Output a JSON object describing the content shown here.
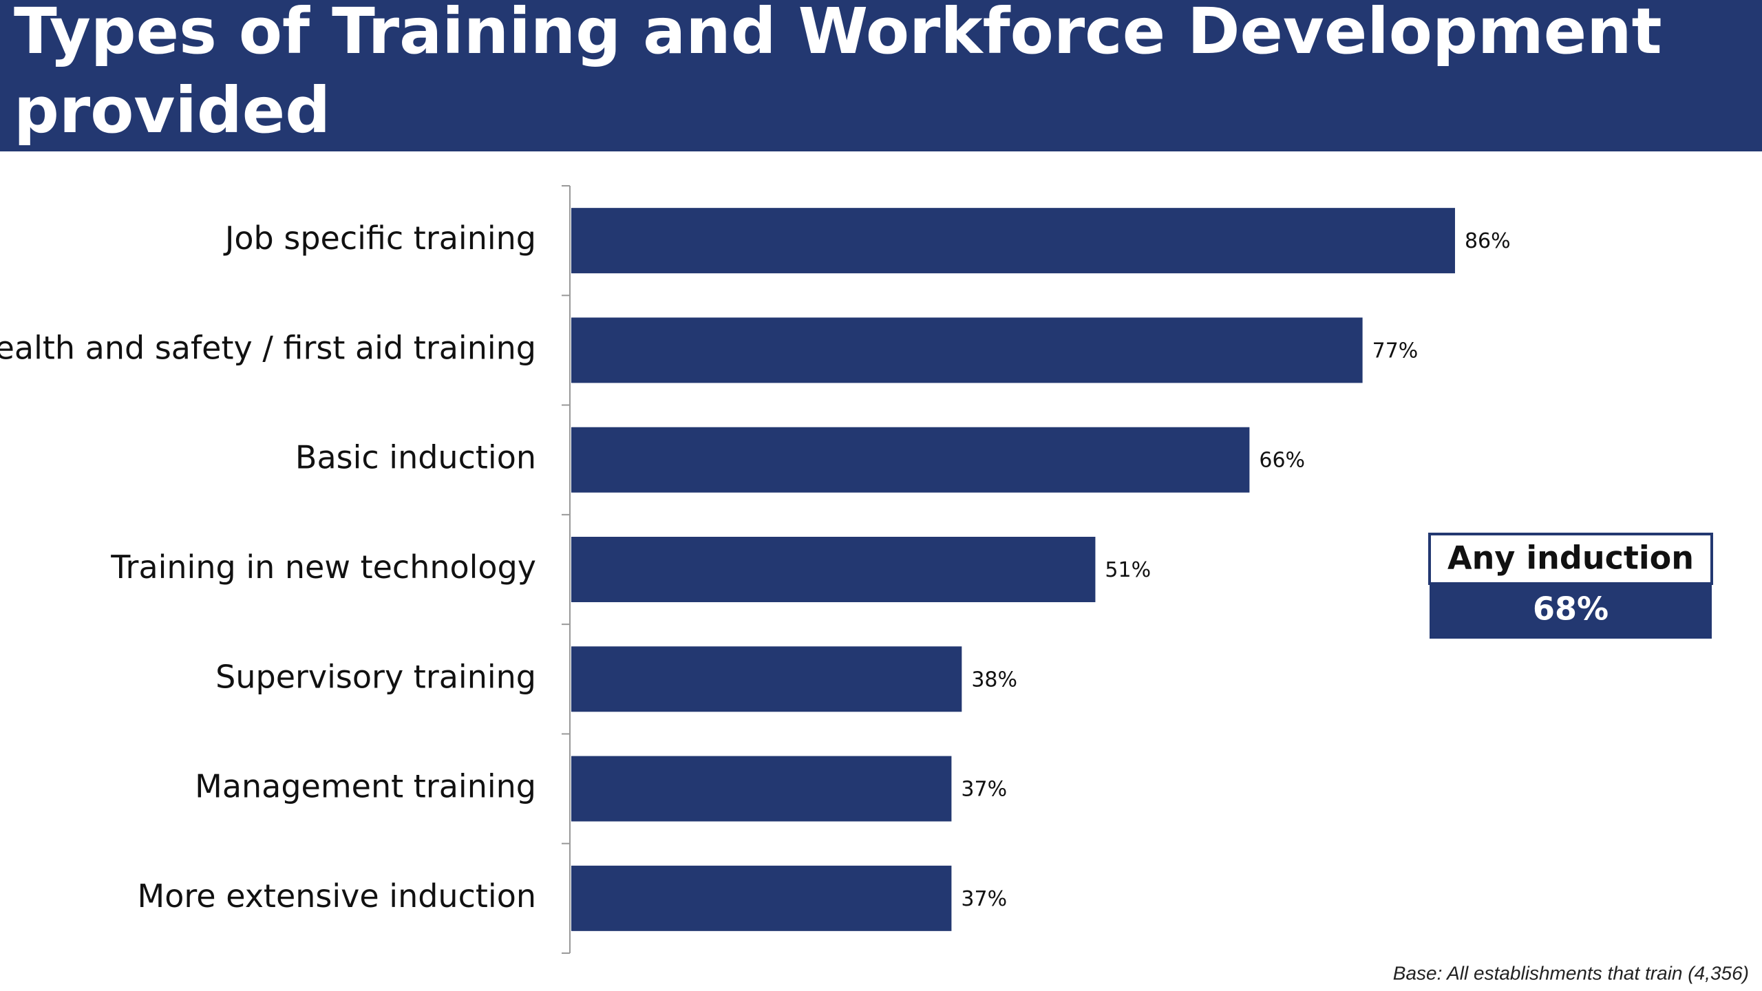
{
  "chart_data": {
    "type": "hbar",
    "title": "Types of Training and Workforce Development provided",
    "categories": [
      "Job specific training",
      "Health and safety / first aid training",
      "Basic induction",
      "Training in new technology",
      "Supervisory training",
      "Management training",
      "More extensive induction"
    ],
    "values": [
      86,
      77,
      66,
      51,
      38,
      37,
      37
    ],
    "value_labels": [
      "86%",
      "77%",
      "66%",
      "51%",
      "38%",
      "37%",
      "37%"
    ],
    "color": "#233871",
    "xlim": [
      0,
      100
    ],
    "callout": {
      "label": "Any induction",
      "value": 68,
      "value_label": "68%"
    },
    "note": "Base: All establishments that train (4,356)"
  }
}
